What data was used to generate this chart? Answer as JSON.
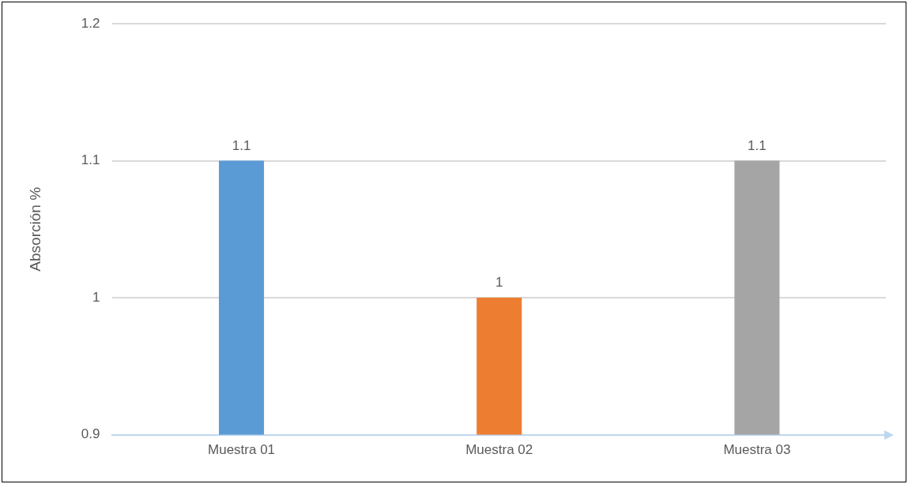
{
  "chart_data": {
    "type": "bar",
    "ylabel": "Absorción %",
    "categories": [
      "Muestra 01",
      "Muestra 02",
      "Muestra 03"
    ],
    "values": [
      1.1,
      1,
      1.1
    ],
    "colors": [
      "#5b9bd5",
      "#ed7d31",
      "#a5a5a5"
    ],
    "ylim": [
      0.9,
      1.2
    ],
    "yticks": [
      0.9,
      1,
      1.1,
      1.2
    ],
    "grid": "y",
    "data_labels": true,
    "legend": false
  }
}
